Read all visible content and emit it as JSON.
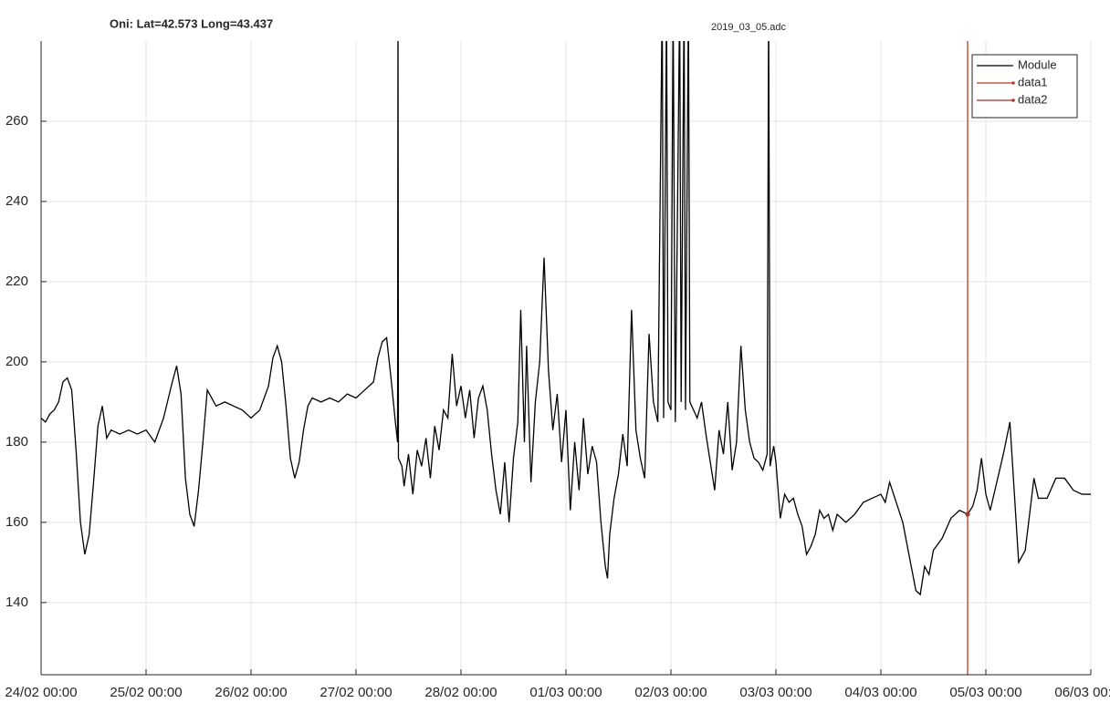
{
  "chart_data": {
    "type": "line",
    "title": "Oni: Lat=42.573 Long=43.437",
    "subtitle": "2019_03_05.adc",
    "xlim": [
      "24/02 00:00",
      "06/03 00:00"
    ],
    "xticks": [
      "24/02 00:00",
      "25/02 00:00",
      "26/02 00:00",
      "27/02 00:00",
      "28/02 00:00",
      "01/03 00:00",
      "02/03 00:00",
      "03/03 00:00",
      "04/03 00:00",
      "05/03 00:00",
      "06/03 00:00"
    ],
    "ylim": [
      122,
      280
    ],
    "yticks": [
      140,
      160,
      180,
      200,
      220,
      240,
      260
    ],
    "grid": true,
    "legend_loc": "northeast",
    "series": [
      {
        "name": "Module",
        "color": "#000000",
        "x": [
          "24/02 00:00",
          "24/02 01:00",
          "24/02 02:00",
          "24/02 03:00",
          "24/02 04:00",
          "24/02 05:00",
          "24/02 06:00",
          "24/02 07:00",
          "24/02 08:00",
          "24/02 09:00",
          "24/02 10:00",
          "24/02 11:00",
          "24/02 12:00",
          "24/02 13:00",
          "24/02 14:00",
          "24/02 15:00",
          "24/02 16:00",
          "24/02 18:00",
          "24/02 20:00",
          "24/02 22:00",
          "25/02 00:00",
          "25/02 02:00",
          "25/02 04:00",
          "25/02 06:00",
          "25/02 07:00",
          "25/02 08:00",
          "25/02 09:00",
          "25/02 10:00",
          "25/02 11:00",
          "25/02 12:00",
          "25/02 13:00",
          "25/02 14:00",
          "25/02 15:00",
          "25/02 16:00",
          "25/02 18:00",
          "25/02 20:00",
          "25/02 22:00",
          "26/02 00:00",
          "26/02 02:00",
          "26/02 04:00",
          "26/02 05:00",
          "26/02 06:00",
          "26/02 07:00",
          "26/02 08:00",
          "26/02 09:00",
          "26/02 10:00",
          "26/02 11:00",
          "26/02 12:00",
          "26/02 13:00",
          "26/02 14:00",
          "26/02 16:00",
          "26/02 18:00",
          "26/02 20:00",
          "26/02 22:00",
          "27/02 00:00",
          "27/02 02:00",
          "27/02 04:00",
          "27/02 05:00",
          "27/02 06:00",
          "27/02 07:00",
          "27/02 08:00",
          "27/02 09:00",
          "27/02 09:30",
          "27/02 09:36",
          "27/02 09:42",
          "27/02 10:30",
          "27/02 11:00",
          "27/02 12:00",
          "27/02 13:00",
          "27/02 14:00",
          "27/02 15:00",
          "27/02 16:00",
          "27/02 17:00",
          "27/02 18:00",
          "27/02 19:00",
          "27/02 20:00",
          "27/02 21:00",
          "27/02 22:00",
          "27/02 23:00",
          "28/02 00:00",
          "28/02 01:00",
          "28/02 02:00",
          "28/02 03:00",
          "28/02 04:00",
          "28/02 05:00",
          "28/02 06:00",
          "28/02 07:00",
          "28/02 08:00",
          "28/02 09:00",
          "28/02 10:00",
          "28/02 11:00",
          "28/02 12:00",
          "28/02 13:00",
          "28/02 13:40",
          "28/02 14:30",
          "28/02 15:00",
          "28/02 16:00",
          "28/02 17:00",
          "28/02 18:00",
          "28/02 19:00",
          "28/02 20:00",
          "28/02 21:00",
          "28/02 22:00",
          "28/02 23:00",
          "01/03 00:00",
          "01/03 01:00",
          "01/03 02:00",
          "01/03 03:00",
          "01/03 04:00",
          "01/03 05:00",
          "01/03 06:00",
          "01/03 07:00",
          "01/03 08:00",
          "01/03 09:00",
          "01/03 09:30",
          "01/03 10:00",
          "01/03 11:00",
          "01/03 12:00",
          "01/03 13:00",
          "01/03 14:00",
          "01/03 15:00",
          "01/03 16:00",
          "01/03 17:00",
          "01/03 18:00",
          "01/03 19:00",
          "01/03 20:00",
          "01/03 21:00",
          "01/03 22:00",
          "01/03 22:20",
          "01/03 23:00",
          "01/03 23:20",
          "02/03 00:00",
          "02/03 00:30",
          "02/03 01:00",
          "02/03 02:00",
          "02/03 02:20",
          "02/03 03:00",
          "02/03 03:20",
          "02/03 04:00",
          "02/03 04:20",
          "02/03 06:00",
          "02/03 07:00",
          "02/03 08:00",
          "02/03 09:00",
          "02/03 10:00",
          "02/03 11:00",
          "02/03 12:00",
          "02/03 13:00",
          "02/03 14:00",
          "02/03 15:00",
          "02/03 16:00",
          "02/03 17:00",
          "02/03 18:00",
          "02/03 19:00",
          "02/03 20:00",
          "02/03 21:00",
          "02/03 22:00",
          "02/03 22:20",
          "02/03 22:40",
          "02/03 23:30",
          "03/03 00:00",
          "03/03 01:00",
          "03/03 02:00",
          "03/03 03:00",
          "03/03 04:00",
          "03/03 05:00",
          "03/03 06:00",
          "03/03 07:00",
          "03/03 08:00",
          "03/03 09:00",
          "03/03 10:00",
          "03/03 11:00",
          "03/03 12:00",
          "03/03 13:00",
          "03/03 14:00",
          "03/03 16:00",
          "03/03 18:00",
          "03/03 20:00",
          "03/03 22:00",
          "04/03 00:00",
          "04/03 01:00",
          "04/03 02:00",
          "04/03 05:00",
          "04/03 08:00",
          "04/03 09:00",
          "04/03 10:00",
          "04/03 11:00",
          "04/03 12:00",
          "04/03 14:00",
          "04/03 16:00",
          "04/03 18:00",
          "04/03 19:50",
          "04/03 21:00",
          "04/03 22:00",
          "04/03 23:00",
          "05/03 00:00",
          "05/03 01:00",
          "05/03 04:00",
          "05/03 05:30",
          "05/03 07:30",
          "05/03 09:00",
          "05/03 11:00",
          "05/03 12:00",
          "05/03 14:00",
          "05/03 16:00",
          "05/03 18:00",
          "05/03 20:00",
          "05/03 22:00",
          "06/03 00:00"
        ],
        "values": [
          186,
          185,
          187,
          188,
          190,
          195,
          196,
          193,
          178,
          160,
          152,
          157,
          170,
          184,
          189,
          181,
          183,
          182,
          183,
          182,
          183,
          180,
          186,
          195,
          199,
          192,
          171,
          162,
          159,
          168,
          180,
          193,
          191,
          189,
          190,
          189,
          188,
          186,
          188,
          194,
          201,
          204,
          200,
          189,
          176,
          171,
          175,
          183,
          189,
          191,
          190,
          191,
          190,
          192,
          191,
          193,
          195,
          201,
          205,
          206,
          196,
          185,
          180,
          290,
          176,
          174,
          169,
          177,
          167,
          178,
          174,
          181,
          171,
          184,
          178,
          188,
          186,
          202,
          189,
          194,
          186,
          193,
          181,
          191,
          194,
          188,
          177,
          168,
          162,
          175,
          160,
          176,
          185,
          213,
          180,
          204,
          170,
          190,
          200,
          226,
          198,
          183,
          192,
          175,
          188,
          163,
          180,
          168,
          186,
          172,
          179,
          175,
          160,
          149,
          146,
          157,
          166,
          172,
          182,
          174,
          213,
          183,
          176,
          171,
          207,
          190,
          185,
          290,
          186,
          290,
          190,
          188,
          290,
          185,
          290,
          190,
          290,
          188,
          290,
          190,
          186,
          190,
          182,
          175,
          168,
          183,
          177,
          190,
          173,
          180,
          204,
          188,
          180,
          176,
          175,
          173,
          177,
          290,
          174,
          179,
          175,
          161,
          167,
          165,
          166,
          162,
          159,
          152,
          154,
          157,
          163,
          161,
          162,
          158,
          162,
          160,
          162,
          165,
          166,
          167,
          165,
          170,
          160,
          143,
          142,
          149,
          147,
          153,
          156,
          161,
          163,
          162,
          164,
          168,
          176,
          167,
          163,
          177,
          185,
          150,
          153,
          171,
          166,
          166,
          171,
          171,
          168,
          167,
          167
        ]
      },
      {
        "name": "data1",
        "color": "#c0392b",
        "x": [
          "04/03 19:50",
          "04/03 19:50"
        ],
        "values": [
          122,
          280
        ]
      },
      {
        "name": "data2",
        "color": "#a93226",
        "x": [
          "04/03 19:50"
        ],
        "values": [
          162
        ]
      }
    ]
  }
}
